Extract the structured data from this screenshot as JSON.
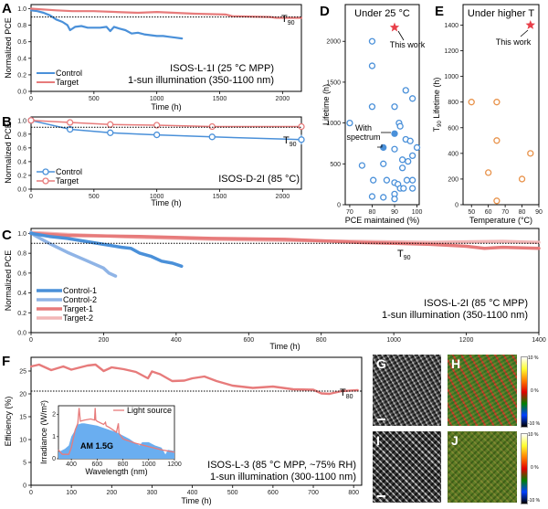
{
  "panels": {
    "A": {
      "label": "A"
    },
    "B": {
      "label": "B"
    },
    "C": {
      "label": "C"
    },
    "D": {
      "label": "D"
    },
    "E": {
      "label": "E"
    },
    "F": {
      "label": "F"
    },
    "G": {
      "label": "G"
    },
    "H": {
      "label": "H"
    },
    "I": {
      "label": "I"
    },
    "J": {
      "label": "J"
    }
  },
  "colors": {
    "control": "#4a90d9",
    "control2": "#8fb4e6",
    "target": "#e77b7b",
    "target2": "#f2b7b7",
    "orange": "#e8924a",
    "star": "#e8404a",
    "am15": "#6aaef0"
  },
  "chart_data": [
    {
      "id": "A",
      "type": "line",
      "title": "",
      "xlabel": "Time (h)",
      "ylabel": "Normalized PCE",
      "xlim": [
        0,
        2150
      ],
      "ylim": [
        0,
        1.05
      ],
      "xticks": [
        0,
        500,
        1000,
        1500,
        2000
      ],
      "yticks": [
        0.0,
        0.2,
        0.4,
        0.6,
        0.8,
        1.0
      ],
      "threshold": {
        "value": 0.9,
        "label_main": "T",
        "label_sub": "90"
      },
      "annotation": [
        "ISOS-L-1I (25 °C MPP)",
        "1-sun illumination (350-1100 nm)"
      ],
      "legend": "bottom-left",
      "series": [
        {
          "name": "Control",
          "color": "#4a90d9",
          "x": [
            0,
            50,
            100,
            150,
            200,
            250,
            290,
            310,
            350,
            400,
            450,
            500,
            550,
            600,
            630,
            660,
            700,
            750,
            800,
            850,
            900,
            950,
            1000,
            1050,
            1100,
            1150,
            1200
          ],
          "y": [
            0.98,
            0.97,
            0.95,
            0.92,
            0.87,
            0.84,
            0.8,
            0.74,
            0.78,
            0.79,
            0.77,
            0.77,
            0.77,
            0.78,
            0.73,
            0.78,
            0.76,
            0.74,
            0.7,
            0.71,
            0.69,
            0.68,
            0.67,
            0.67,
            0.66,
            0.65,
            0.64
          ]
        },
        {
          "name": "Target",
          "color": "#e77b7b",
          "x": [
            0,
            200,
            330,
            500,
            850,
            1000,
            1300,
            1550,
            1600,
            1900,
            1950,
            2150
          ],
          "y": [
            1.0,
            0.98,
            0.97,
            0.97,
            0.95,
            0.96,
            0.94,
            0.93,
            0.91,
            0.9,
            0.89,
            0.89
          ]
        }
      ]
    },
    {
      "id": "B",
      "type": "line",
      "xlabel": "Time (h)",
      "ylabel": "Normalized PCE",
      "xlim": [
        0,
        2150
      ],
      "ylim": [
        0,
        1.05
      ],
      "xticks": [
        0,
        500,
        1000,
        1500,
        2000
      ],
      "yticks": [
        0.0,
        0.2,
        0.4,
        0.6,
        0.8,
        1.0
      ],
      "threshold": {
        "value": 0.9,
        "label_main": "T",
        "label_sub": "90"
      },
      "annotation": [
        "ISOS-D-2I (85 °C)"
      ],
      "legend": "bottom-left",
      "series": [
        {
          "name": "Control",
          "color": "#4a90d9",
          "x": [
            0,
            310,
            630,
            1000,
            1440,
            2150
          ],
          "y": [
            1.0,
            0.87,
            0.82,
            0.79,
            0.76,
            0.72
          ],
          "err": [
            0,
            0.02,
            0.02,
            0.02,
            0.04,
            0.07
          ]
        },
        {
          "name": "Target",
          "color": "#e77b7b",
          "x": [
            0,
            310,
            630,
            1000,
            1440,
            2150
          ],
          "y": [
            1.0,
            0.97,
            0.94,
            0.93,
            0.91,
            0.91
          ],
          "err": [
            0,
            0.03,
            0.05,
            0.02,
            0.01,
            0.02
          ]
        }
      ]
    },
    {
      "id": "D",
      "type": "scatter",
      "title": "Under 25 °C",
      "xlabel": "PCE maintained (%)",
      "ylabel": "Lifetime (h)",
      "xlim": [
        68,
        101
      ],
      "ylim": [
        0,
        2450
      ],
      "xticks": [
        70,
        80,
        90,
        100
      ],
      "yticks": [
        0,
        500,
        1000,
        1500,
        2000
      ],
      "points": [
        [
          70,
          1000
        ],
        [
          75.5,
          480
        ],
        [
          80,
          2000
        ],
        [
          80,
          1700
        ],
        [
          80,
          1200
        ],
        [
          80,
          100
        ],
        [
          80.5,
          300
        ],
        [
          85,
          500
        ],
        [
          85,
          90
        ],
        [
          86.5,
          300
        ],
        [
          90,
          1200
        ],
        [
          90,
          680
        ],
        [
          90,
          270
        ],
        [
          90,
          130
        ],
        [
          90,
          70
        ],
        [
          91.5,
          250
        ],
        [
          92,
          1000
        ],
        [
          92.5,
          960
        ],
        [
          92.5,
          200
        ],
        [
          93.5,
          450
        ],
        [
          93.5,
          550
        ],
        [
          94,
          200
        ],
        [
          95,
          1400
        ],
        [
          95,
          800
        ],
        [
          95.5,
          300
        ],
        [
          96,
          530
        ],
        [
          97,
          780
        ],
        [
          98,
          1300
        ],
        [
          98,
          600
        ],
        [
          98,
          300
        ],
        [
          98,
          200
        ],
        [
          100,
          700
        ]
      ],
      "spectrum_points": [
        [
          90,
          870
        ],
        [
          85,
          700
        ]
      ],
      "this_work": [
        90,
        2170
      ],
      "annotations": {
        "this_work": "This work",
        "with_spectrum_1": "With",
        "with_spectrum_2": "spectrum"
      }
    },
    {
      "id": "E",
      "type": "scatter",
      "title": "Under higher T",
      "xlabel": "Temperature (°C)",
      "ylabel_main": "T",
      "ylabel_sub": "90",
      "ylabel_rest": " Lifetime (h)",
      "xlim": [
        45,
        90
      ],
      "ylim": [
        0,
        1560
      ],
      "xticks": [
        50,
        60,
        70,
        80,
        90
      ],
      "yticks": [
        0,
        200,
        400,
        600,
        800,
        1000,
        1200,
        1400
      ],
      "points": [
        [
          50,
          800
        ],
        [
          65,
          800
        ],
        [
          65,
          500
        ],
        [
          60,
          250
        ],
        [
          65,
          30
        ],
        [
          80,
          200
        ],
        [
          85,
          400
        ]
      ],
      "this_work": [
        85,
        1400
      ],
      "annotations": {
        "this_work": "This work"
      }
    },
    {
      "id": "C",
      "type": "line",
      "xlabel": "Time (h)",
      "ylabel": "Normalized PCE",
      "xlim": [
        0,
        1400
      ],
      "ylim": [
        0,
        1.05
      ],
      "xticks": [
        0,
        200,
        400,
        600,
        800,
        1000,
        1200,
        1400
      ],
      "yticks": [
        0.0,
        0.2,
        0.4,
        0.6,
        0.8,
        1.0
      ],
      "threshold": {
        "value": 0.9,
        "label_main": "T",
        "label_sub": "90"
      },
      "annotation": [
        "ISOS-L-2I (85 °C MPP)",
        "1-sun illumination (350-1100 nm)"
      ],
      "legend": "bottom-left",
      "series": [
        {
          "name": "Control-1",
          "color": "#4a90d9",
          "x": [
            0,
            50,
            100,
            150,
            200,
            250,
            275,
            300,
            330,
            360,
            390,
            415
          ],
          "y": [
            1.0,
            0.97,
            0.95,
            0.92,
            0.89,
            0.86,
            0.85,
            0.8,
            0.77,
            0.72,
            0.7,
            0.67
          ]
        },
        {
          "name": "Control-2",
          "color": "#8fb4e6",
          "x": [
            0,
            10,
            50,
            100,
            150,
            200,
            215,
            233
          ],
          "y": [
            1.01,
            0.98,
            0.9,
            0.81,
            0.73,
            0.65,
            0.6,
            0.57
          ]
        },
        {
          "name": "Target-1",
          "color": "#e77b7b",
          "x": [
            0,
            100,
            300,
            500,
            700,
            900,
            1000,
            1100,
            1200,
            1250,
            1300,
            1400
          ],
          "y": [
            1.0,
            0.98,
            0.97,
            0.95,
            0.94,
            0.91,
            0.9,
            0.89,
            0.87,
            0.85,
            0.86,
            0.85
          ]
        },
        {
          "name": "Target-2",
          "color": "#f2b7b7",
          "x": [
            0,
            100,
            300,
            500,
            700,
            900,
            1100,
            1300,
            1400
          ],
          "y": [
            1.01,
            0.99,
            0.96,
            0.94,
            0.93,
            0.92,
            0.91,
            0.92,
            0.91
          ]
        }
      ]
    },
    {
      "id": "F",
      "type": "line",
      "xlabel": "Time (h)",
      "ylabel": "Efficiency (%)",
      "xlim": [
        0,
        820
      ],
      "ylim": [
        0,
        28
      ],
      "xticks": [
        0,
        100,
        200,
        300,
        400,
        500,
        600,
        700,
        800
      ],
      "yticks": [
        0,
        5,
        10,
        15,
        20,
        25
      ],
      "threshold": {
        "value": 20.6,
        "label_main": "T",
        "label_sub": "80"
      },
      "annotation": [
        "ISOS-L-3 (85 °C MPP, ~75% RH)",
        "1-sun illumination (300-1100 nm)"
      ],
      "series": [
        {
          "name": "Efficiency",
          "color": "#e77b7b",
          "x": [
            0,
            20,
            50,
            80,
            100,
            140,
            160,
            180,
            200,
            230,
            260,
            290,
            300,
            320,
            350,
            380,
            400,
            430,
            460,
            500,
            550,
            600,
            650,
            700,
            720,
            740,
            770,
            810
          ],
          "y": [
            26,
            26.4,
            25.2,
            26,
            25.3,
            26.2,
            26.4,
            25,
            25.8,
            25.4,
            24.8,
            23.4,
            24.9,
            24.3,
            22.8,
            22.9,
            23.4,
            23.8,
            22.8,
            21.8,
            21.3,
            21.6,
            21.0,
            20.9,
            20.1,
            20.0,
            20.6,
            20.8
          ]
        }
      ],
      "inset": {
        "xlabel": "Wavelength (nm)",
        "ylabel": "Irradiance (W/m²)",
        "xlim": [
          300,
          1200
        ],
        "ylim": [
          0,
          2.4
        ],
        "xticks": [
          400,
          600,
          800,
          1000,
          1200
        ],
        "yticks": [
          0,
          1,
          2
        ],
        "area_label": "AM 1.5G",
        "legend": "Light source",
        "am15": {
          "x": [
            300,
            350,
            380,
            400,
            430,
            450,
            480,
            500,
            550,
            600,
            650,
            700,
            750,
            800,
            850,
            900,
            930,
            950,
            1000,
            1050,
            1100,
            1130,
            1150,
            1200
          ],
          "y": [
            0.3,
            0.45,
            0.6,
            1.0,
            1.3,
            1.55,
            1.6,
            1.6,
            1.55,
            1.5,
            1.4,
            1.3,
            1.2,
            1.05,
            0.9,
            0.7,
            0.6,
            0.75,
            0.75,
            0.6,
            0.5,
            0.2,
            0.4,
            0.35
          ]
        },
        "light_source": {
          "x": [
            300,
            330,
            380,
            400,
            430,
            450,
            460,
            470,
            500,
            550,
            580,
            585,
            590,
            600,
            650,
            665,
            670,
            700,
            750,
            765,
            770,
            800,
            850,
            900,
            1000,
            1100,
            1200
          ],
          "y": [
            0.4,
            0.2,
            0.2,
            0.5,
            1.3,
            1.6,
            2.3,
            1.7,
            1.75,
            1.8,
            1.75,
            2.3,
            1.75,
            1.7,
            1.55,
            1.65,
            1.5,
            1.4,
            1.2,
            1.6,
            1.15,
            0.9,
            0.8,
            0.7,
            0.55,
            0.4,
            0.3
          ]
        }
      }
    }
  ],
  "colorbars": {
    "H": {
      "top": "10 %",
      "mid": "0 %",
      "bottom": "-10 %"
    },
    "J": {
      "top": "10 %",
      "mid": "0 %",
      "bottom": "-10 %"
    }
  }
}
